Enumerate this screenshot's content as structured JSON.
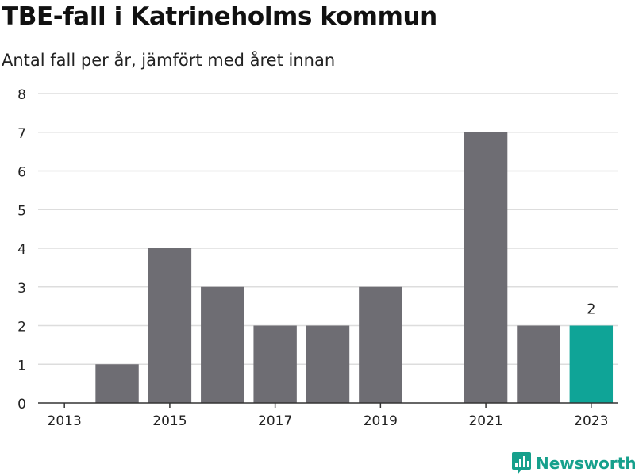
{
  "title": "TBE-fall i Katrineholms kommun",
  "subtitle": "Antal fall per år, jämfört med året innan",
  "brand": {
    "name": "Newsworthy",
    "color": "#16a08c"
  },
  "chart_data": {
    "type": "bar",
    "categories": [
      "2013",
      "2014",
      "2015",
      "2016",
      "2017",
      "2018",
      "2019",
      "2020",
      "2021",
      "2022",
      "2023"
    ],
    "values": [
      0,
      1,
      4,
      3,
      2,
      2,
      3,
      0,
      7,
      2,
      2
    ],
    "x_tick_labels": [
      "2013",
      "2015",
      "2017",
      "2019",
      "2021",
      "2023"
    ],
    "ylim": [
      0,
      8
    ],
    "y_ticks": [
      "0",
      "1",
      "2",
      "3",
      "4",
      "5",
      "6",
      "7",
      "8"
    ],
    "grid": true,
    "colors": {
      "bar": "#6e6d73",
      "highlight": "#0fa497",
      "grid": "#dddddd",
      "axis": "#333333"
    },
    "highlight_category": "2023",
    "data_labels": [
      {
        "category": "2023",
        "text": "2"
      }
    ],
    "xlabel": "",
    "ylabel": ""
  }
}
